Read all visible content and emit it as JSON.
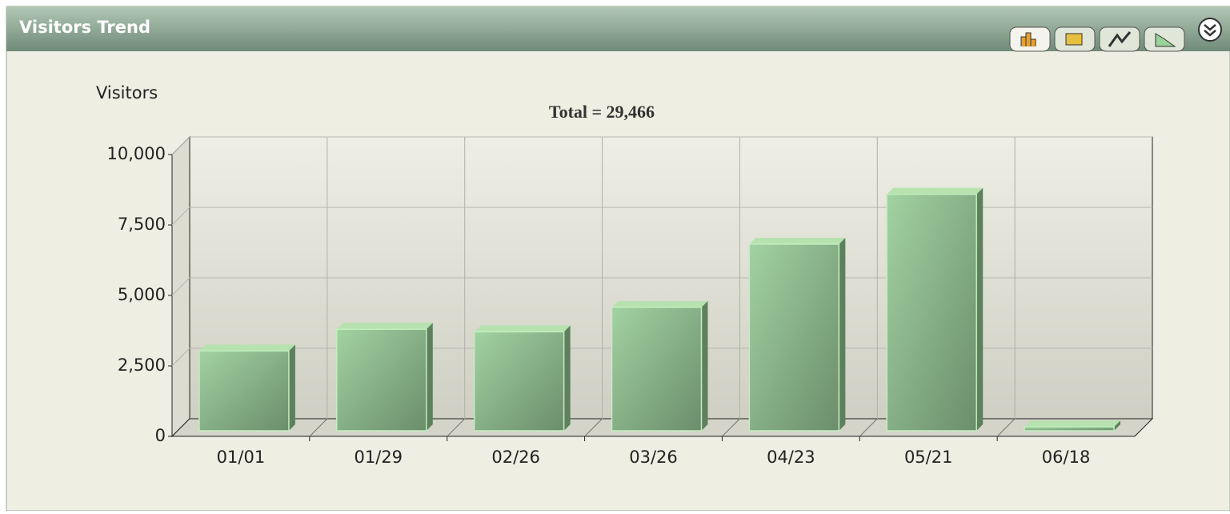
{
  "panel": {
    "title": "Visitors Trend"
  },
  "chart_data": {
    "type": "bar3d",
    "subtitle": "Total = 29,466",
    "y_label": "Visitors",
    "categories": [
      "01/01",
      "01/29",
      "02/26",
      "03/26",
      "04/23",
      "05/21",
      "06/18"
    ],
    "values": [
      2830,
      3600,
      3510,
      4380,
      6620,
      8390,
      136
    ],
    "color": "#86b486",
    "ylim": [
      0,
      10000
    ],
    "yticks": [
      0,
      {
        "value": 2500,
        "label": "2,500"
      },
      {
        "value": 5000,
        "label": "5,000"
      },
      {
        "value": 7500,
        "label": "7,500"
      },
      {
        "value": 10000,
        "label": "10,000"
      }
    ],
    "grid": true
  }
}
